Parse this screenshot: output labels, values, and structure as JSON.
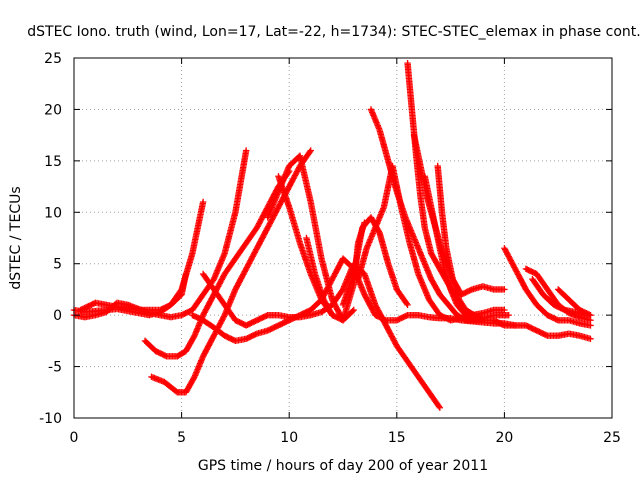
{
  "chart_data": {
    "type": "scatter",
    "title": "dSTEC Iono. truth (wind, Lon=17, Lat=-22, h=1734): STEC-STEC_elemax in phase cont.",
    "xlabel": "GPS time / hours of day 200 of year 2011",
    "ylabel": "dSTEC  / TECUs",
    "xlim": [
      0,
      25
    ],
    "ylim": [
      -10,
      25
    ],
    "x_ticks": [
      0,
      5,
      10,
      15,
      20,
      25
    ],
    "y_ticks": [
      -10,
      -5,
      0,
      5,
      10,
      15,
      20,
      25
    ],
    "grid": true,
    "marker": "+",
    "color": "#ff0000",
    "series": [
      {
        "x": [
          0.0,
          0.5,
          1.0,
          1.5,
          2.0,
          2.5,
          3.0,
          3.5,
          4.0,
          4.5,
          5.0,
          5.5,
          6.0
        ],
        "y": [
          0.5,
          0.3,
          0.4,
          0.5,
          0.6,
          0.4,
          0.2,
          0.0,
          0.3,
          1.0,
          2.5,
          6.0,
          11.0
        ]
      },
      {
        "x": [
          0.0,
          0.5,
          1.0,
          1.5,
          2.0,
          2.5,
          3.0,
          3.5,
          4.0,
          4.5,
          5.0,
          5.5,
          6.5,
          7.0,
          7.5,
          8.0
        ],
        "y": [
          0.0,
          -0.2,
          0.0,
          0.3,
          1.2,
          1.0,
          0.6,
          0.2,
          0.0,
          -0.2,
          0.0,
          0.5,
          3.5,
          6.0,
          10.0,
          16.0
        ]
      },
      {
        "x": [
          0.3,
          1.0,
          2.0,
          3.0,
          4.0,
          4.5,
          5.0,
          5.2
        ],
        "y": [
          0.5,
          1.2,
          0.8,
          0.5,
          0.5,
          1.0,
          2.0,
          4.0
        ]
      },
      {
        "x": [
          3.3,
          3.8,
          4.3,
          4.8,
          5.2,
          5.6,
          6.0,
          6.5,
          7.0,
          7.5,
          8.0,
          8.5,
          9.0,
          9.5,
          10.0
        ],
        "y": [
          -2.5,
          -3.5,
          -4.0,
          -4.0,
          -3.5,
          -2.0,
          0.0,
          2.0,
          4.0,
          5.5,
          7.0,
          8.5,
          10.5,
          12.5,
          14.0
        ]
      },
      {
        "x": [
          3.6,
          4.2,
          4.8,
          5.2,
          5.6,
          6.0,
          6.5,
          7.0,
          7.5,
          8.0,
          8.5,
          9.0,
          9.5,
          10.0,
          10.5,
          11.0
        ],
        "y": [
          -6.0,
          -6.5,
          -7.5,
          -7.5,
          -6.0,
          -4.0,
          -2.0,
          0.0,
          2.5,
          4.5,
          6.5,
          8.5,
          10.5,
          12.5,
          14.5,
          16.0
        ]
      },
      {
        "x": [
          6.0,
          6.5,
          7.0,
          7.5,
          8.0,
          8.5,
          9.0,
          9.5,
          10.0,
          10.5,
          11.0,
          11.5,
          12.0,
          12.5,
          13.0,
          13.5,
          14.0,
          14.5,
          15.0,
          15.5,
          16.0,
          16.5,
          17.0
        ],
        "y": [
          4.0,
          2.5,
          1.0,
          -0.5,
          -1.0,
          -0.5,
          0.0,
          0.0,
          -0.2,
          -0.2,
          0.0,
          0.3,
          1.0,
          2.5,
          5.0,
          4.0,
          1.0,
          -1.0,
          -3.0,
          -4.5,
          -6.0,
          -7.5,
          -9.0
        ]
      },
      {
        "x": [
          5.5,
          6.0,
          6.5,
          7.0,
          7.5,
          8.0,
          8.5,
          9.0,
          9.5,
          10.0,
          10.5,
          11.0,
          11.5,
          12.0,
          12.5,
          13.0,
          13.5,
          14.0,
          14.5,
          15.0,
          15.5,
          16.0,
          16.5,
          17.0,
          17.5,
          18.0,
          18.5,
          19.0,
          19.5,
          20.0,
          20.5,
          21.0,
          21.5,
          22.0,
          22.5,
          23.0,
          23.5,
          24.0
        ],
        "y": [
          0.0,
          -0.5,
          -1.2,
          -2.0,
          -2.5,
          -2.3,
          -1.8,
          -1.5,
          -1.0,
          -0.5,
          0.0,
          0.5,
          1.5,
          3.5,
          5.5,
          4.5,
          2.0,
          0.0,
          -0.5,
          -0.5,
          0.0,
          0.0,
          -0.2,
          -0.3,
          -0.3,
          -0.5,
          -0.6,
          -0.7,
          -0.8,
          -0.8,
          -1.0,
          -1.0,
          -1.5,
          -2.0,
          -2.0,
          -1.8,
          -2.0,
          -2.3
        ]
      },
      {
        "x": [
          9.0,
          9.5,
          10.0,
          10.5,
          11.0,
          11.5,
          12.0,
          12.5,
          13.0
        ],
        "y": [
          9.5,
          12.0,
          14.5,
          15.5,
          11.0,
          5.5,
          1.5,
          -0.5,
          0.5
        ]
      },
      {
        "x": [
          9.5,
          10.0,
          10.5,
          11.0,
          11.5,
          12.0
        ],
        "y": [
          13.5,
          10.5,
          7.0,
          4.0,
          1.5,
          0.0
        ]
      },
      {
        "x": [
          10.8,
          11.2,
          11.6,
          12.0,
          12.5,
          13.0,
          13.2,
          13.5
        ],
        "y": [
          7.5,
          4.0,
          1.5,
          0.0,
          -0.5,
          3.0,
          7.0,
          9.0
        ]
      },
      {
        "x": [
          12.5,
          13.0,
          13.4,
          13.8,
          14.2,
          14.6,
          15.0,
          15.5
        ],
        "y": [
          1.0,
          4.0,
          8.5,
          9.5,
          8.0,
          5.0,
          2.5,
          1.0
        ]
      },
      {
        "x": [
          13.2,
          13.6,
          14.0,
          14.4,
          14.8,
          15.2,
          15.6,
          16.0,
          16.5,
          17.0,
          17.5,
          18.0,
          18.5,
          19.0,
          19.5,
          20.0
        ],
        "y": [
          3.5,
          6.5,
          8.5,
          10.5,
          14.5,
          10.5,
          7.0,
          4.0,
          1.5,
          0.0,
          -0.5,
          -0.3,
          0.0,
          0.2,
          0.5,
          0.5
        ]
      },
      {
        "x": [
          13.8,
          14.2,
          14.6,
          15.0,
          15.4,
          15.8,
          16.2,
          16.6,
          17.0,
          17.4,
          17.8,
          18.2,
          18.6,
          19.0,
          19.5,
          20.2
        ],
        "y": [
          20.0,
          18.0,
          15.0,
          12.0,
          9.5,
          7.5,
          5.5,
          3.5,
          2.0,
          1.0,
          0.0,
          -0.5,
          -0.5,
          -0.3,
          0.0,
          0.0
        ]
      },
      {
        "x": [
          15.5,
          15.7,
          15.9,
          16.1,
          16.3,
          16.6,
          17.0,
          17.4,
          17.8,
          18.2,
          18.6,
          19.0,
          19.5,
          20.0,
          20.5
        ],
        "y": [
          24.5,
          20.0,
          15.5,
          11.5,
          8.5,
          6.0,
          4.5,
          3.0,
          1.5,
          0.5,
          0.0,
          -0.5,
          -0.5,
          -1.0,
          -1.0
        ]
      },
      {
        "x": [
          15.8,
          16.1,
          16.4,
          16.8,
          17.2,
          17.6,
          18.0,
          18.5,
          19.0,
          19.5,
          20.0
        ],
        "y": [
          17.5,
          14.5,
          11.5,
          8.5,
          5.5,
          3.5,
          2.0,
          2.5,
          2.8,
          2.5,
          2.5
        ]
      },
      {
        "x": [
          16.3,
          16.6,
          16.9,
          17.2,
          17.5,
          17.8,
          18.2,
          18.6,
          19.0
        ],
        "y": [
          13.5,
          10.5,
          7.5,
          4.5,
          2.5,
          1.0,
          0.0,
          -0.5,
          -0.5
        ]
      },
      {
        "x": [
          16.9,
          17.1,
          17.3,
          17.6,
          17.9,
          18.2,
          18.6,
          19.0
        ],
        "y": [
          14.5,
          10.0,
          6.5,
          3.5,
          1.5,
          0.5,
          0.0,
          -0.3
        ]
      },
      {
        "x": [
          20.0,
          20.5,
          21.0,
          21.5,
          22.0,
          22.5,
          23.0,
          23.5,
          24.0
        ],
        "y": [
          6.5,
          4.5,
          2.5,
          1.0,
          0.0,
          -0.5,
          -0.5,
          -0.8,
          -1.0
        ]
      },
      {
        "x": [
          21.0,
          21.5,
          22.0,
          22.5,
          23.0,
          23.5,
          24.0
        ],
        "y": [
          4.5,
          4.0,
          2.5,
          1.0,
          0.2,
          -0.2,
          -0.5
        ]
      },
      {
        "x": [
          21.3,
          21.8,
          22.3,
          22.8,
          23.3,
          23.8,
          24.0
        ],
        "y": [
          3.5,
          2.0,
          1.0,
          0.5,
          0.3,
          0.0,
          0.0
        ]
      },
      {
        "x": [
          22.5,
          23.0,
          23.5,
          24.0
        ],
        "y": [
          2.5,
          1.5,
          0.5,
          0.0
        ]
      }
    ]
  }
}
